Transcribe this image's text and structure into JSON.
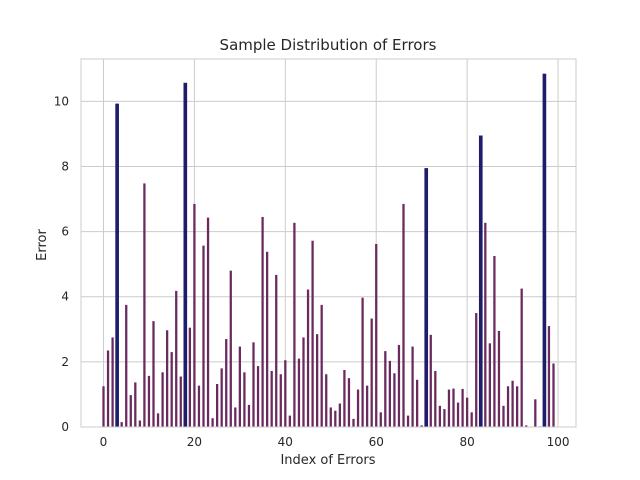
{
  "colors": {
    "normal_bar": "#6a2a5e",
    "highlight_bar": "#1d1d6b",
    "grid": "#cccccc",
    "frame": "#cccccc"
  },
  "chart_data": {
    "type": "bar",
    "title": "Sample Distribution of Errors",
    "xlabel": "Index of Errors",
    "ylabel": "Error",
    "xlim": [
      -4.95,
      103.95
    ],
    "ylim": [
      0,
      11.3
    ],
    "xticks": [
      0,
      20,
      40,
      60,
      80,
      100
    ],
    "yticks": [
      0,
      2,
      4,
      6,
      8,
      10
    ],
    "grid": true,
    "highlight_threshold": 7.5,
    "x": [
      0,
      1,
      2,
      3,
      4,
      5,
      6,
      7,
      8,
      9,
      10,
      11,
      12,
      13,
      14,
      15,
      16,
      17,
      18,
      19,
      20,
      21,
      22,
      23,
      24,
      25,
      26,
      27,
      28,
      29,
      30,
      31,
      32,
      33,
      34,
      35,
      36,
      37,
      38,
      39,
      40,
      41,
      42,
      43,
      44,
      45,
      46,
      47,
      48,
      49,
      50,
      51,
      52,
      53,
      54,
      55,
      56,
      57,
      58,
      59,
      60,
      61,
      62,
      63,
      64,
      65,
      66,
      67,
      68,
      69,
      70,
      71,
      72,
      73,
      74,
      75,
      76,
      77,
      78,
      79,
      80,
      81,
      82,
      83,
      84,
      85,
      86,
      87,
      88,
      89,
      90,
      91,
      92,
      93,
      94,
      95,
      96,
      97,
      98,
      99
    ],
    "values": [
      1.25,
      2.35,
      2.75,
      9.93,
      0.15,
      3.75,
      0.98,
      1.37,
      0.2,
      7.48,
      1.57,
      3.25,
      0.42,
      1.68,
      2.97,
      2.3,
      4.18,
      1.55,
      10.57,
      3.05,
      6.85,
      1.27,
      5.57,
      6.43,
      0.27,
      1.32,
      1.8,
      2.7,
      4.8,
      0.6,
      2.47,
      1.68,
      0.68,
      2.6,
      1.87,
      6.45,
      5.38,
      1.72,
      4.67,
      1.62,
      2.05,
      0.35,
      6.27,
      2.1,
      2.75,
      4.22,
      5.72,
      2.85,
      3.75,
      1.62,
      0.6,
      0.5,
      0.72,
      1.75,
      1.5,
      0.25,
      1.15,
      3.97,
      1.27,
      3.33,
      5.62,
      0.45,
      2.33,
      2.03,
      1.65,
      2.52,
      6.85,
      0.35,
      2.47,
      1.45,
      0.05,
      7.95,
      2.83,
      1.72,
      0.65,
      0.55,
      1.15,
      1.18,
      0.75,
      1.17,
      0.9,
      0.45,
      3.5,
      8.95,
      6.27,
      2.57,
      5.25,
      2.95,
      0.65,
      1.25,
      1.42,
      1.25,
      4.25,
      0.05,
      0.0,
      0.85,
      0.02,
      10.85,
      3.1,
      1.95
    ]
  }
}
